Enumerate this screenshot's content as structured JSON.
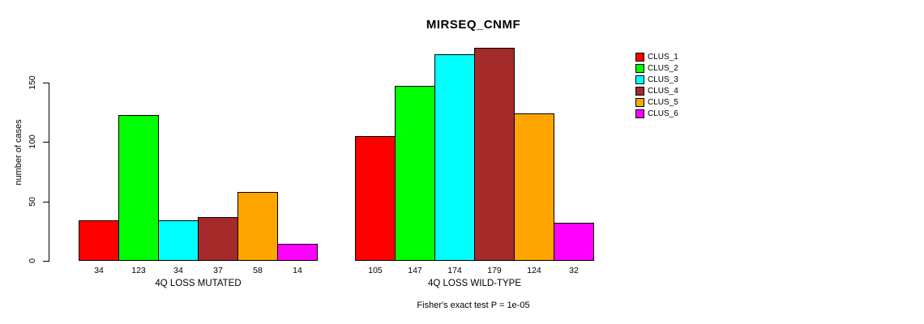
{
  "chart_data": {
    "type": "bar",
    "title": "MIRSEQ_CNMF",
    "ylabel": "number of cases",
    "yticks": [
      0,
      50,
      100,
      150
    ],
    "grid": false,
    "legend_position": "right",
    "series": [
      {
        "name": "CLUS_1",
        "color": "#FF0000"
      },
      {
        "name": "CLUS_2",
        "color": "#00FF00"
      },
      {
        "name": "CLUS_3",
        "color": "#00FFFF"
      },
      {
        "name": "CLUS_4",
        "color": "#A52A2A"
      },
      {
        "name": "CLUS_5",
        "color": "#FFA500"
      },
      {
        "name": "CLUS_6",
        "color": "#FF00FF"
      }
    ],
    "groups": [
      {
        "label": "4Q LOSS MUTATED",
        "values": [
          34,
          123,
          34,
          37,
          58,
          14
        ]
      },
      {
        "label": "4Q LOSS WILD-TYPE",
        "values": [
          105,
          147,
          174,
          179,
          124,
          32
        ]
      }
    ],
    "annotation": "Fisher's exact test P = 1e-05"
  }
}
